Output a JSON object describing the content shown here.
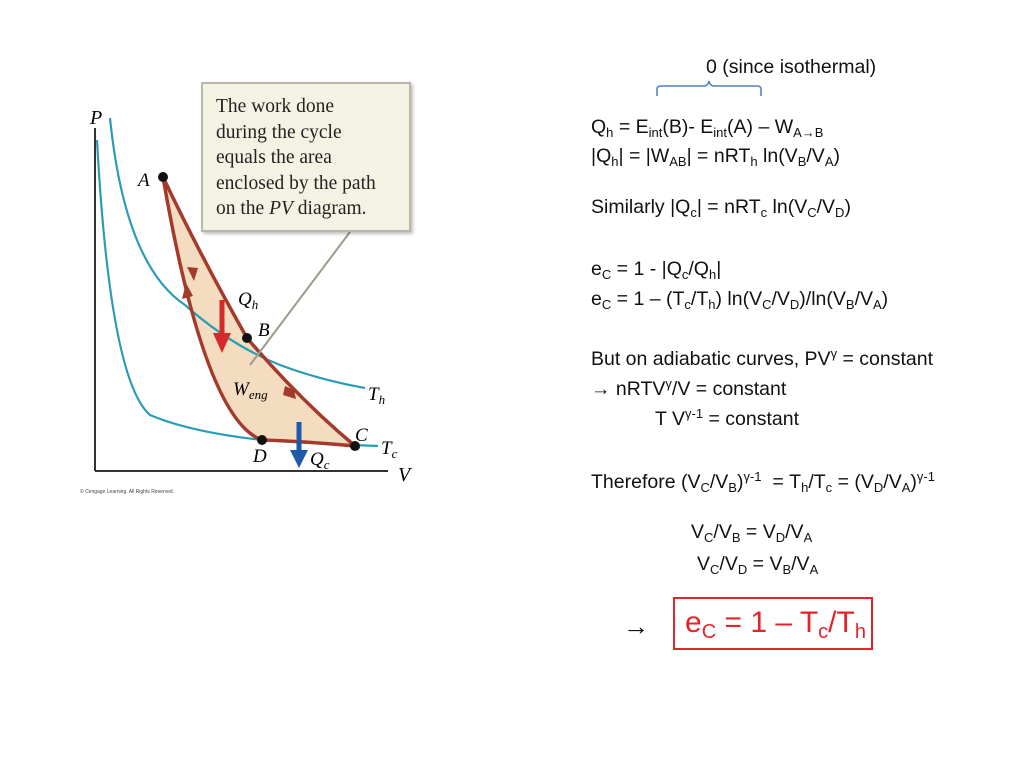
{
  "diagram": {
    "axis_p": "P",
    "axis_v": "V",
    "point_a": "A",
    "point_b": "B",
    "point_c": "C",
    "point_d": "D",
    "qh_base": "Q",
    "qh_sub": "h",
    "qc_base": "Q",
    "qc_sub": "c",
    "weng_base": "W",
    "weng_sub": "eng",
    "th_base": "T",
    "th_sub": "h",
    "tc_base": "T",
    "tc_sub": "c",
    "callout_lines": [
      "The work done",
      "during the cycle",
      "equals the area",
      "enclosed by the path"
    ],
    "callout_last_pre": "on the ",
    "callout_last_em": "PV",
    "callout_last_post": " diagram.",
    "copyright": "© Cengage Learning. All Rights Reserved.",
    "colors": {
      "isotherm": "#2a9cb6",
      "path": "#a33a2b",
      "fill": "#f3dcc0",
      "qh_arrow": "#d42a2a",
      "qc_arrow": "#1e5aa8"
    }
  },
  "equations": {
    "brace_note": "0 (since isothermal)",
    "line1": {
      "q": "Q",
      "q_sub": "h",
      "mid1": " = E",
      "e1_sub": "int",
      "mid2": "(B)- E",
      "e2_sub": "int",
      "mid3": "(A) – W",
      "w_sub": "A→B"
    },
    "line2": {
      "p1": "|Q",
      "s1": "h",
      "p2": "| = |W",
      "s2": "AB",
      "p3": "| = nRT",
      "s3": "h",
      "p4": " ln(V",
      "s4": "B",
      "p5": "/V",
      "s5": "A",
      "p6": ")"
    },
    "line3": {
      "p1": "Similarly |Q",
      "s1": "c",
      "p2": "| = nRT",
      "s2": "c",
      "p3": " ln(V",
      "s3": "C",
      "p4": "/V",
      "s4": "D",
      "p5": ")"
    },
    "line4": {
      "p1": "e",
      "s1": "C",
      "p2": " = 1 - |Q",
      "s2": "c",
      "p3": "/Q",
      "s3": "h",
      "p4": "|"
    },
    "line5": {
      "p1": "e",
      "s1": "C",
      "p2": " = 1 – (T",
      "s2": "c",
      "p3": "/T",
      "s3": "h",
      "p4": ") ln(V",
      "s4": "C",
      "p5": "/V",
      "s5": "D",
      "p6": ")/ln(V",
      "s6": "B",
      "p7": "/V",
      "s7": "A",
      "p8": ")"
    },
    "line6": {
      "p1": "But on adiabatic curves, PV",
      "sup1": "γ",
      "p2": " = constant"
    },
    "line7": {
      "p1": "→ nRTV",
      "sup1": "γ",
      "p2": "/V = constant"
    },
    "line8": {
      "p1": "T V",
      "sup1": "γ-1",
      "p2": " = constant"
    },
    "line9": {
      "p1": "Therefore (V",
      "s1": "C",
      "p2": "/V",
      "s2": "B",
      "p3": ")",
      "sup1": "γ-1",
      "p4": "  = T",
      "s3": "h",
      "p5": "/T",
      "s4": "c",
      "p6": " = (V",
      "s5": "D",
      "p7": "/V",
      "s6": "A",
      "p8": ")",
      "sup2": "γ-1"
    },
    "line10": {
      "p1": "V",
      "s1": "C",
      "p2": "/V",
      "s2": "B",
      "p3": " = V",
      "s3": "D",
      "p4": "/V",
      "s4": "A"
    },
    "line11": {
      "p1": "V",
      "s1": "C",
      "p2": "/V",
      "s2": "D",
      "p3": " = V",
      "s3": "B",
      "p4": "/V",
      "s4": "A"
    },
    "final": {
      "arrow": "→",
      "p1": "e",
      "s1": "C",
      "p2": " = 1 – T",
      "s2": "c",
      "p3": "/T",
      "s3": "h"
    },
    "final_color": "#e3242b"
  }
}
